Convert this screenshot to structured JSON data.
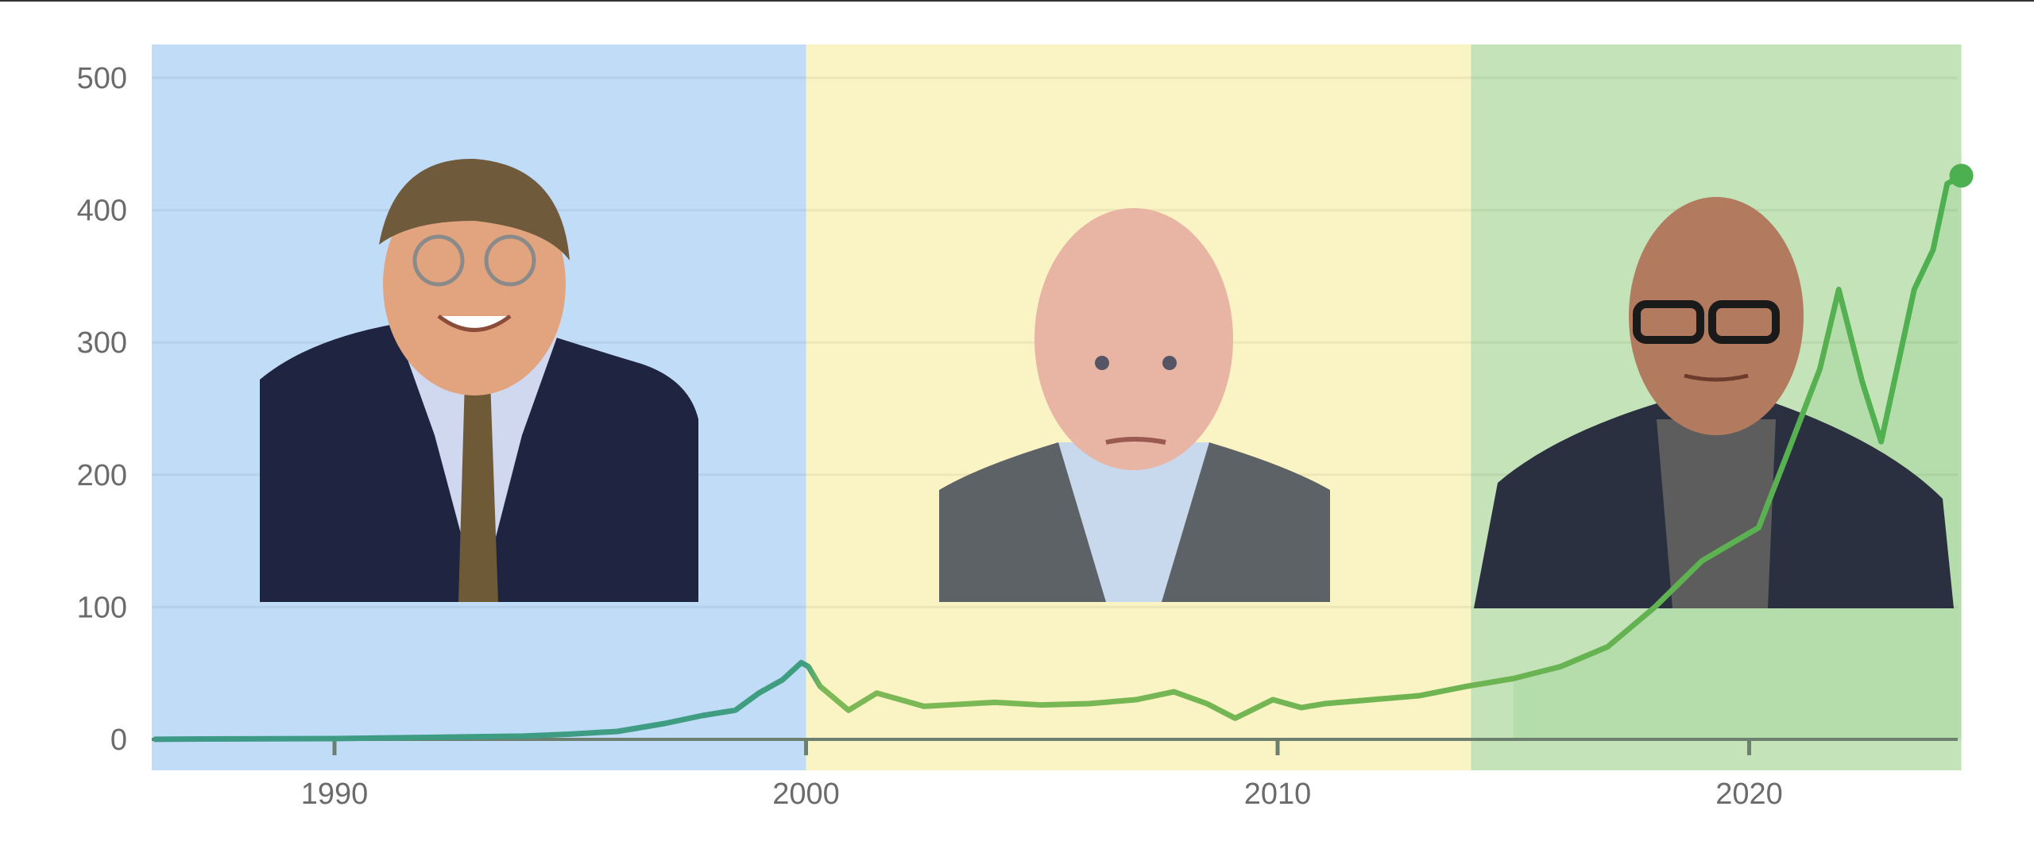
{
  "chart_data": {
    "type": "line",
    "title": "",
    "xlabel": "",
    "ylabel": "",
    "xlim": [
      1986.1,
      2024.5
    ],
    "ylim": [
      -25,
      525
    ],
    "grid": true,
    "x_ticks": [
      "1990",
      "2000",
      "2010",
      "2020"
    ],
    "y_ticks": [
      "0",
      "100",
      "200",
      "300",
      "400",
      "500"
    ],
    "regions": [
      {
        "from": 1986.1,
        "to": 2000.0,
        "color": "#c0dcf7",
        "portrait": "bill-gates"
      },
      {
        "from": 2000.0,
        "to": 2014.1,
        "color": "#faf3c3",
        "portrait": "steve-ballmer"
      },
      {
        "from": 2014.1,
        "to": 2024.5,
        "color": "#c4e3b8",
        "portrait": "satya-nadella"
      }
    ],
    "line_colors": [
      "#3d9a86",
      "#7db956",
      "#4caf50"
    ],
    "series": [
      {
        "x": [
          1986.2,
          1988,
          1990,
          1992,
          1994,
          1995,
          1996,
          1997,
          1997.8,
          1998.5,
          1999,
          1999.5,
          1999.9,
          2000.05,
          2000.3,
          2000.9,
          2001.5,
          2002,
          2002.5,
          2003,
          2004,
          2005,
          2006,
          2007,
          2007.8,
          2008.5,
          2009.1,
          2009.9,
          2010.5,
          2011,
          2012,
          2013,
          2014,
          2015,
          2016,
          2017,
          2018,
          2019,
          2020.2,
          2020.8,
          2021.5,
          2021.9,
          2022.4,
          2022.8,
          2023.5,
          2023.9,
          2024.2,
          2024.5
        ],
        "y": [
          0.1,
          0.4,
          0.6,
          1.5,
          2.5,
          4,
          6,
          12,
          18,
          22,
          35,
          45,
          58,
          55,
          40,
          22,
          35,
          30,
          25,
          26,
          28,
          26,
          27,
          30,
          36,
          27,
          16,
          30,
          24,
          27,
          30,
          33,
          40,
          46,
          55,
          70,
          100,
          135,
          160,
          215,
          280,
          340,
          270,
          225,
          340,
          370,
          420,
          426
        ]
      }
    ]
  }
}
